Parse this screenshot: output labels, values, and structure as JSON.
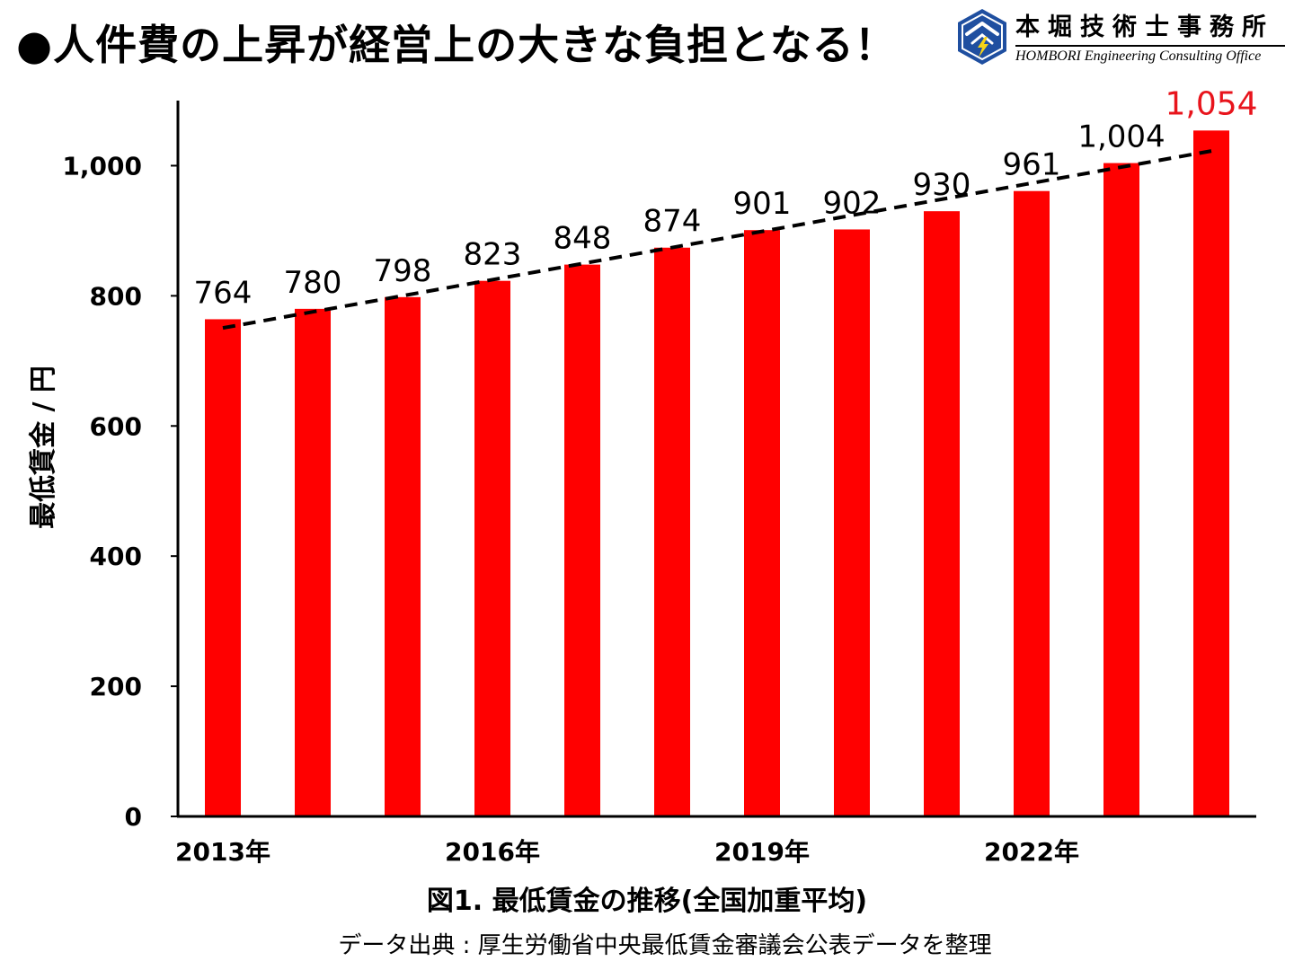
{
  "slide_title": "●人件費の上昇が経営上の大きな負担となる！",
  "logo": {
    "name": "本堀技術士事務所",
    "subtitle": "HOMBORI Engineering Consulting Office",
    "icon": "hexagon-lightning-logo-icon",
    "colors": {
      "blue": "#1f4fa0",
      "yellow": "#f7d417"
    }
  },
  "chart_data": {
    "type": "bar",
    "categories": [
      "2013年",
      "",
      "",
      "2016年",
      "",
      "",
      "2019年",
      "",
      "",
      "2022年",
      "",
      ""
    ],
    "values": [
      764,
      780,
      798,
      823,
      848,
      874,
      901,
      902,
      930,
      961,
      1004,
      1054
    ],
    "data_labels": [
      "764",
      "780",
      "798",
      "823",
      "848",
      "874",
      "901",
      "902",
      "930",
      "961",
      "1,004",
      "1,054"
    ],
    "highlight_index": 11,
    "ylabel": "最低賃金 / 円",
    "ylim": [
      0,
      1100
    ],
    "yticks": [
      0,
      200,
      400,
      600,
      800,
      1000
    ],
    "ytick_labels": [
      "0",
      "200",
      "400",
      "600",
      "800",
      "1,000"
    ],
    "trendline": {
      "style": "dashed",
      "color": "#000000"
    },
    "grid": false,
    "legend": "none",
    "bar_color": "#ff0000",
    "highlight_label_color": "#e8141c"
  },
  "figure_caption": "図1. 最低賃金の推移(全国加重平均)",
  "source_note": "データ出典 : 厚生労働省中央最低賃金審議会公表データを整理"
}
